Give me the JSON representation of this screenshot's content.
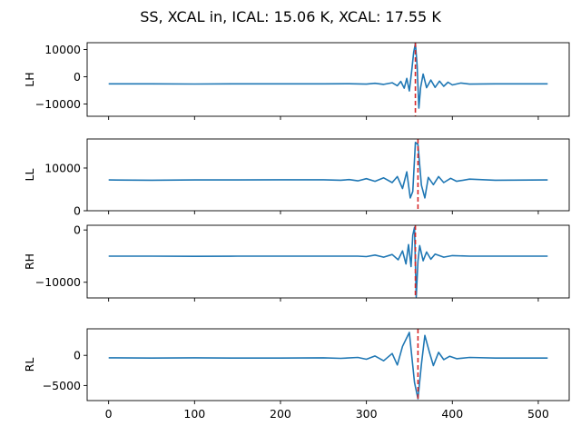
{
  "chart_data": {
    "type": "line",
    "title": "SS, XCAL in, ICAL: 15.06 K, XCAL: 17.55 K",
    "xlim": [
      -25,
      536
    ],
    "x_ticks": [
      0,
      100,
      200,
      300,
      400,
      500
    ],
    "line_color": "#1f77b4",
    "marker_color": "#d62728",
    "grid": false,
    "panels": [
      {
        "name": "LH",
        "ylabel": "LH",
        "ylim": [
          -14500,
          12500
        ],
        "y_ticks": [
          -10000,
          0,
          10000
        ],
        "baseline": -2600,
        "amplitude": 13000,
        "peak_x": 357,
        "marker_x": 357,
        "series": [
          {
            "points": [
              [
                0,
                -2600
              ],
              [
                50,
                -2600
              ],
              [
                100,
                -2650
              ],
              [
                150,
                -2600
              ],
              [
                200,
                -2600
              ],
              [
                250,
                -2600
              ],
              [
                280,
                -2550
              ],
              [
                300,
                -2700
              ],
              [
                310,
                -2400
              ],
              [
                320,
                -2800
              ],
              [
                330,
                -2200
              ],
              [
                336,
                -3300
              ],
              [
                340,
                -1700
              ],
              [
                344,
                -4200
              ],
              [
                347,
                -600
              ],
              [
                350,
                -5200
              ],
              [
                353,
                3000
              ],
              [
                355,
                9000
              ],
              [
                357,
                12200
              ],
              [
                359,
                4000
              ],
              [
                361,
                -11500
              ],
              [
                363,
                -4000
              ],
              [
                366,
                1000
              ],
              [
                370,
                -4000
              ],
              [
                375,
                -1200
              ],
              [
                380,
                -3900
              ],
              [
                385,
                -1600
              ],
              [
                390,
                -3500
              ],
              [
                395,
                -2000
              ],
              [
                400,
                -3000
              ],
              [
                410,
                -2300
              ],
              [
                420,
                -2700
              ],
              [
                450,
                -2600
              ],
              [
                511,
                -2600
              ]
            ]
          }
        ]
      },
      {
        "name": "LL",
        "ylabel": "LL",
        "ylim": [
          0,
          16800
        ],
        "y_ticks": [
          0,
          10000
        ],
        "baseline": 7200,
        "amplitude": 9000,
        "peak_x": 357,
        "marker_x": 360,
        "series": [
          {
            "points": [
              [
                0,
                7200
              ],
              [
                50,
                7150
              ],
              [
                100,
                7200
              ],
              [
                150,
                7200
              ],
              [
                200,
                7250
              ],
              [
                250,
                7250
              ],
              [
                270,
                7150
              ],
              [
                280,
                7300
              ],
              [
                290,
                7000
              ],
              [
                300,
                7500
              ],
              [
                310,
                6900
              ],
              [
                320,
                7700
              ],
              [
                330,
                6600
              ],
              [
                336,
                8000
              ],
              [
                342,
                5200
              ],
              [
                347,
                9100
              ],
              [
                351,
                3000
              ],
              [
                354,
                4500
              ],
              [
                357,
                16000
              ],
              [
                360,
                15500
              ],
              [
                364,
                6000
              ],
              [
                368,
                3000
              ],
              [
                372,
                7800
              ],
              [
                378,
                6100
              ],
              [
                384,
                8000
              ],
              [
                390,
                6600
              ],
              [
                398,
                7600
              ],
              [
                405,
                6900
              ],
              [
                420,
                7400
              ],
              [
                450,
                7150
              ],
              [
                511,
                7200
              ]
            ]
          }
        ]
      },
      {
        "name": "RH",
        "ylabel": "RH",
        "ylim": [
          -13000,
          900
        ],
        "y_ticks": [
          -10000,
          0
        ],
        "baseline": -5000,
        "amplitude": 8000,
        "peak_x": 357,
        "marker_x": 357,
        "series": [
          {
            "points": [
              [
                0,
                -5000
              ],
              [
                50,
                -5000
              ],
              [
                100,
                -5050
              ],
              [
                150,
                -5000
              ],
              [
                200,
                -5000
              ],
              [
                250,
                -5000
              ],
              [
                290,
                -5000
              ],
              [
                300,
                -5100
              ],
              [
                310,
                -4800
              ],
              [
                320,
                -5200
              ],
              [
                330,
                -4700
              ],
              [
                337,
                -5700
              ],
              [
                342,
                -4000
              ],
              [
                346,
                -6500
              ],
              [
                349,
                -2800
              ],
              [
                352,
                -7000
              ],
              [
                354,
                -1000
              ],
              [
                356,
                500
              ],
              [
                358,
                -12800
              ],
              [
                360,
                -6000
              ],
              [
                362,
                -3000
              ],
              [
                366,
                -5900
              ],
              [
                370,
                -4200
              ],
              [
                375,
                -5600
              ],
              [
                380,
                -4600
              ],
              [
                390,
                -5200
              ],
              [
                400,
                -4900
              ],
              [
                420,
                -5000
              ],
              [
                511,
                -5000
              ]
            ]
          }
        ]
      },
      {
        "name": "RL",
        "ylabel": "RL",
        "ylim": [
          -7500,
          4400
        ],
        "y_ticks": [
          -5000,
          0
        ],
        "baseline": -400,
        "amplitude": 6500,
        "peak_x": 360,
        "marker_x": 360,
        "series": [
          {
            "points": [
              [
                0,
                -400
              ],
              [
                50,
                -450
              ],
              [
                100,
                -400
              ],
              [
                150,
                -450
              ],
              [
                200,
                -450
              ],
              [
                250,
                -400
              ],
              [
                270,
                -500
              ],
              [
                290,
                -350
              ],
              [
                300,
                -650
              ],
              [
                310,
                -100
              ],
              [
                320,
                -900
              ],
              [
                330,
                300
              ],
              [
                336,
                -1600
              ],
              [
                342,
                1500
              ],
              [
                350,
                3800
              ],
              [
                356,
                -4500
              ],
              [
                360,
                -7200
              ],
              [
                364,
                -1500
              ],
              [
                368,
                3300
              ],
              [
                373,
                700
              ],
              [
                378,
                -1700
              ],
              [
                384,
                500
              ],
              [
                390,
                -700
              ],
              [
                397,
                -150
              ],
              [
                405,
                -550
              ],
              [
                420,
                -350
              ],
              [
                450,
                -450
              ],
              [
                511,
                -450
              ]
            ]
          }
        ]
      }
    ]
  }
}
